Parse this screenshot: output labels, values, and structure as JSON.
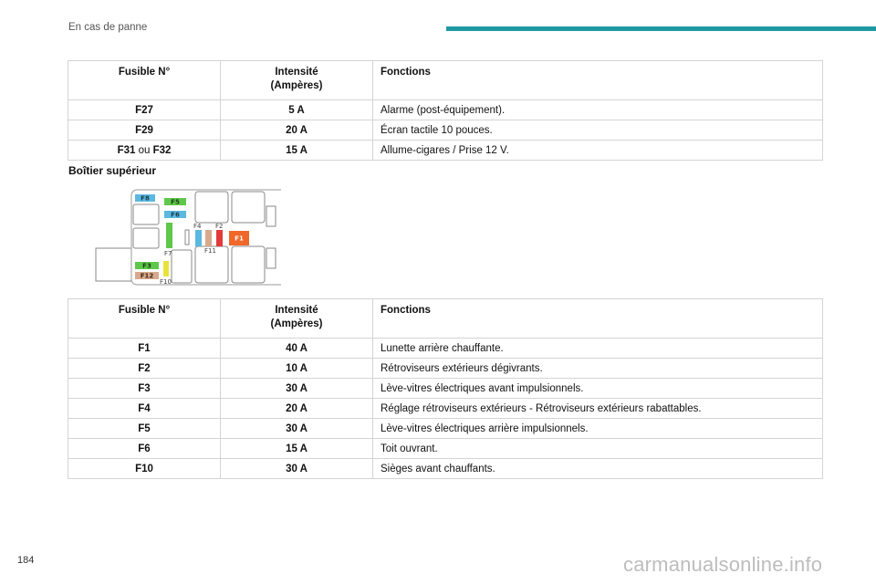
{
  "header": {
    "section_title": "En cas de panne",
    "accent_color": "#1e99a3"
  },
  "table1": {
    "headers": {
      "fuse": "Fusible N°",
      "intensity_line1": "Intensité",
      "intensity_line2": "(Ampères)",
      "functions": "Fonctions"
    },
    "rows": [
      {
        "fuse": "F27",
        "fuse_or": "",
        "fuse_alt": "",
        "amps": "5 A",
        "function": "Alarme (post-équipement)."
      },
      {
        "fuse": "F29",
        "fuse_or": "",
        "fuse_alt": "",
        "amps": "20 A",
        "function": "Écran tactile 10 pouces."
      },
      {
        "fuse": "F31",
        "fuse_or": " ou ",
        "fuse_alt": "F32",
        "amps": "15 A",
        "function": "Allume-cigares / Prise 12 V."
      }
    ]
  },
  "section": {
    "title": "Boîtier supérieur"
  },
  "diagram": {
    "labels": {
      "f1": "F1",
      "f2": "F2",
      "f3": "F3",
      "f4": "F4",
      "f5": "F5",
      "f6": "F6",
      "f7": "F7",
      "f8": "F8",
      "f10": "F10",
      "f11": "F11",
      "f12": "F12"
    },
    "colors": {
      "blue": "#5bb8e0",
      "green": "#5ec84a",
      "yellow": "#e8e23a",
      "tan": "#d9a98c",
      "red": "#e23a3a",
      "orange": "#f0672a"
    }
  },
  "table2": {
    "headers": {
      "fuse": "Fusible N°",
      "intensity_line1": "Intensité",
      "intensity_line2": "(Ampères)",
      "functions": "Fonctions"
    },
    "rows": [
      {
        "fuse": "F1",
        "amps": "40 A",
        "function": "Lunette arrière chauffante."
      },
      {
        "fuse": "F2",
        "amps": "10 A",
        "function": "Rétroviseurs extérieurs dégivrants."
      },
      {
        "fuse": "F3",
        "amps": "30 A",
        "function": "Lève-vitres électriques avant impulsionnels."
      },
      {
        "fuse": "F4",
        "amps": "20 A",
        "function": "Réglage rétroviseurs extérieurs - Rétroviseurs extérieurs rabattables."
      },
      {
        "fuse": "F5",
        "amps": "30 A",
        "function": "Lève-vitres électriques arrière impulsionnels."
      },
      {
        "fuse": "F6",
        "amps": "15 A",
        "function": "Toit ouvrant."
      },
      {
        "fuse": "F10",
        "amps": "30 A",
        "function": "Sièges avant chauffants."
      }
    ]
  },
  "footer": {
    "page_number": "184",
    "watermark": "carmanualsonline.info"
  }
}
